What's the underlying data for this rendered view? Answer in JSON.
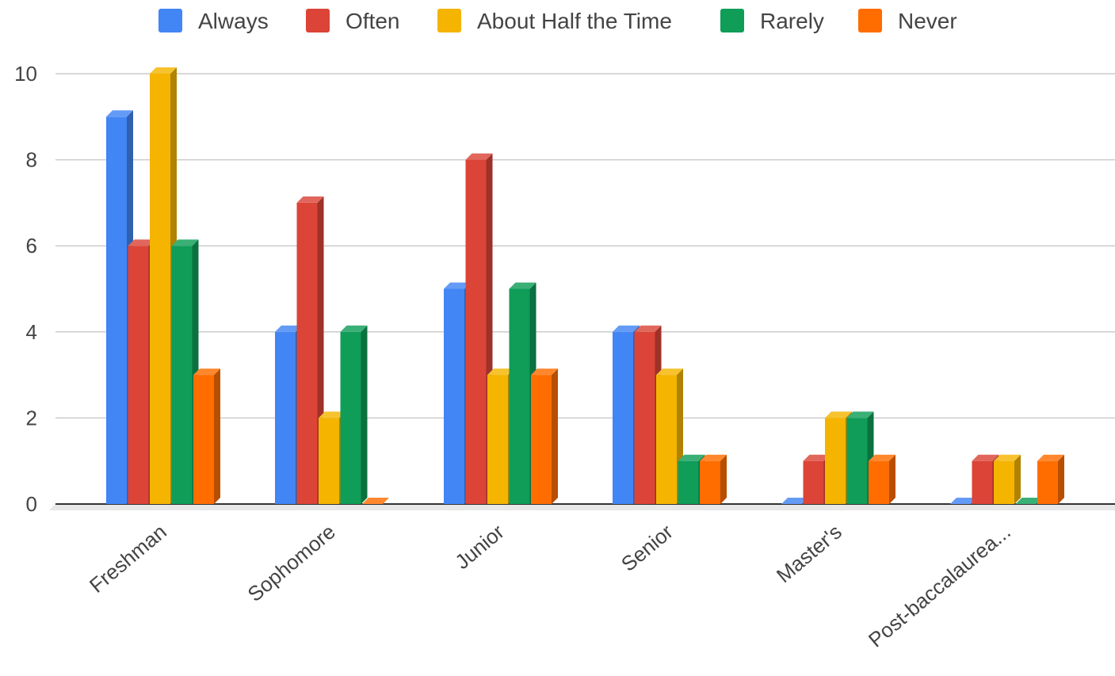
{
  "chart_data": {
    "type": "bar",
    "style": "3d",
    "categories": [
      "Freshman",
      "Sophomore",
      "Junior",
      "Senior",
      "Master's",
      "Post-baccalaurea..."
    ],
    "series": [
      {
        "name": "Always",
        "color": "#4285f4",
        "values": [
          9,
          4,
          5,
          4,
          0,
          0
        ]
      },
      {
        "name": "Often",
        "color": "#db4437",
        "values": [
          6,
          7,
          8,
          4,
          1,
          1
        ]
      },
      {
        "name": "About Half the Time",
        "color": "#f4b400",
        "values": [
          10,
          2,
          3,
          3,
          2,
          1
        ]
      },
      {
        "name": "Rarely",
        "color": "#0f9d58",
        "values": [
          6,
          4,
          5,
          1,
          2,
          0
        ]
      },
      {
        "name": "Never",
        "color": "#ff6d00",
        "values": [
          3,
          0,
          3,
          1,
          1,
          1
        ]
      }
    ],
    "ylim": [
      0,
      10
    ],
    "yticks": [
      "0",
      "2",
      "4",
      "6",
      "8",
      "10"
    ],
    "grid": true,
    "legend_position": "top"
  }
}
